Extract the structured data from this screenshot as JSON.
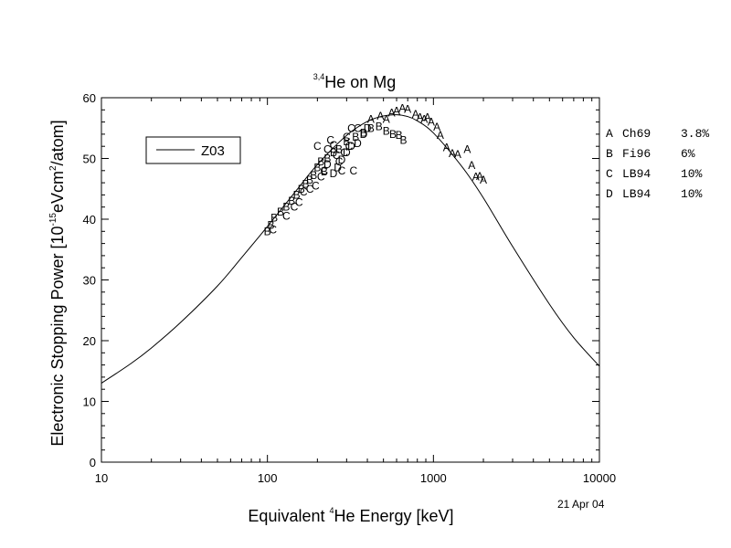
{
  "chart_data": {
    "type": "line",
    "title": {
      "sup": "3,4",
      "text": "He on Mg"
    },
    "xlabel": {
      "pre": "Equivalent ",
      "sup": "4",
      "post": "He Energy [keV]"
    },
    "ylabel": {
      "pre": "Electronic Stopping Power [10",
      "sup1": "-15",
      "mid": "eVcm",
      "sup2": "2",
      "post": "/atom]"
    },
    "x_scale": "log",
    "xlim": [
      10,
      10000
    ],
    "ylim": [
      0,
      60
    ],
    "x_ticks": [
      {
        "value": 10,
        "label": "10"
      },
      {
        "value": 100,
        "label": "100"
      },
      {
        "value": 1000,
        "label": "1000"
      },
      {
        "value": 10000,
        "label": "10000"
      }
    ],
    "y_ticks": [
      0,
      10,
      20,
      30,
      40,
      50,
      60
    ],
    "legend": {
      "label": "Z03",
      "placement": "top-left"
    },
    "curve": {
      "name": "Z03",
      "x": [
        10,
        15,
        20,
        30,
        50,
        70,
        100,
        150,
        200,
        300,
        400,
        500,
        600,
        700,
        800,
        1000,
        1500,
        2000,
        3000,
        5000,
        7000,
        10000
      ],
      "y": [
        13.0,
        16.2,
        18.8,
        23.0,
        29.0,
        33.7,
        38.8,
        44.8,
        49.0,
        53.8,
        56.1,
        57.0,
        57.2,
        56.9,
        56.2,
        54.2,
        48.5,
        43.5,
        35.5,
        26.0,
        20.5,
        15.8
      ]
    },
    "series": [
      {
        "name": "A",
        "source": "Ch69",
        "error": "3.8%",
        "x": [
          420,
          480,
          520,
          560,
          600,
          650,
          700,
          780,
          830,
          880,
          920,
          970,
          1050,
          1100,
          1200,
          1300,
          1400,
          1600,
          1700,
          1800,
          1900,
          2000
        ],
        "y": [
          56.5,
          57.0,
          56.5,
          57.5,
          57.8,
          58.3,
          58.1,
          57.3,
          56.8,
          56.5,
          56.8,
          56.0,
          55.2,
          53.8,
          51.8,
          50.8,
          50.7,
          51.5,
          48.9,
          47.0,
          47.1,
          46.5
        ]
      },
      {
        "name": "B",
        "source": "Fi96",
        "error": "6%",
        "x": [
          100,
          105,
          110,
          120,
          130,
          140,
          150,
          160,
          170,
          180,
          190,
          200,
          210,
          220,
          230,
          250,
          270,
          300,
          340,
          380,
          420,
          470,
          520,
          570,
          620,
          660
        ],
        "y": [
          38.0,
          39.0,
          40.2,
          41.2,
          42.0,
          43.0,
          44.0,
          45.0,
          45.8,
          46.5,
          47.2,
          48.5,
          49.5,
          47.8,
          50.0,
          51.0,
          51.5,
          52.8,
          53.5,
          54.2,
          55.0,
          55.3,
          54.5,
          54.0,
          53.8,
          53.0
        ]
      },
      {
        "name": "C",
        "source": "LB94",
        "error": "10%",
        "x": [
          108,
          130,
          145,
          155,
          165,
          180,
          195,
          200,
          210,
          220,
          230,
          240,
          250,
          260,
          270,
          280,
          290,
          300,
          310,
          320,
          330,
          350
        ],
        "y": [
          38.3,
          40.5,
          42.0,
          42.8,
          44.5,
          45.0,
          45.5,
          52.0,
          47.0,
          48.0,
          51.5,
          53.0,
          52.2,
          50.5,
          49.5,
          48.0,
          51.0,
          53.5,
          52.0,
          55.0,
          48.0,
          55.0
        ]
      },
      {
        "name": "D",
        "source": "LB94",
        "error": "10%",
        "x": [
          230,
          250,
          265,
          280,
          300,
          320,
          350,
          380,
          400
        ],
        "y": [
          49.0,
          47.5,
          48.5,
          49.8,
          51.0,
          52.0,
          52.5,
          54.0,
          55.0
        ]
      }
    ]
  },
  "date_stamp": "21 Apr 04"
}
